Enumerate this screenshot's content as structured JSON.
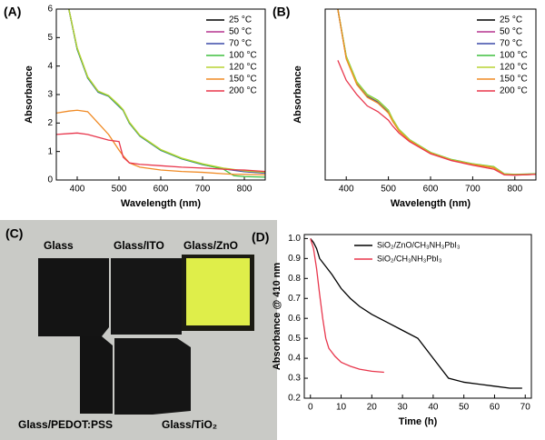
{
  "chart_data": [
    {
      "type": "line",
      "label": "(A)",
      "xlabel": "Wavelength (nm)",
      "ylabel": "Absorbance",
      "x": [
        350,
        380,
        400,
        425,
        450,
        475,
        500,
        510,
        525,
        550,
        600,
        650,
        700,
        750,
        775,
        800,
        850
      ],
      "xlim": [
        350,
        850
      ],
      "xticks": [
        400,
        500,
        600,
        700,
        800
      ],
      "ylim": [
        0,
        6
      ],
      "yticks": [
        0,
        1,
        2,
        3,
        4,
        5,
        6
      ],
      "legend": "upper right",
      "series": [
        {
          "name": "25 °C",
          "color": "#000000",
          "values": [
            null,
            6,
            4.6,
            3.6,
            3.1,
            2.95,
            2.6,
            2.45,
            2.0,
            1.55,
            1.05,
            0.75,
            0.55,
            0.4,
            0.35,
            0.3,
            0.25
          ]
        },
        {
          "name": "50 °C",
          "color": "#b5338f",
          "values": [
            null,
            6,
            4.62,
            3.62,
            3.12,
            2.96,
            2.62,
            2.46,
            2.02,
            1.56,
            1.06,
            0.76,
            0.56,
            0.41,
            0.36,
            0.31,
            0.26
          ]
        },
        {
          "name": "70 °C",
          "color": "#3b4aa8",
          "values": [
            null,
            6,
            4.58,
            3.58,
            3.08,
            2.94,
            2.58,
            2.44,
            1.99,
            1.54,
            1.04,
            0.74,
            0.54,
            0.39,
            0.34,
            0.29,
            0.24
          ]
        },
        {
          "name": "100 °C",
          "color": "#3fbf3f",
          "values": [
            null,
            6,
            4.6,
            3.6,
            3.1,
            2.95,
            2.6,
            2.45,
            2.0,
            1.55,
            1.05,
            0.75,
            0.55,
            0.38,
            0.15,
            0.12,
            0.1
          ]
        },
        {
          "name": "120 °C",
          "color": "#b8d433",
          "values": [
            null,
            6,
            4.64,
            3.63,
            3.12,
            2.97,
            2.63,
            2.47,
            2.03,
            1.57,
            1.07,
            0.77,
            0.57,
            0.42,
            0.37,
            0.32,
            0.27
          ]
        },
        {
          "name": "150 °C",
          "color": "#f08a24",
          "values": [
            2.35,
            2.42,
            2.45,
            2.4,
            2.0,
            1.6,
            1.05,
            0.85,
            0.6,
            0.45,
            0.35,
            0.3,
            0.27,
            0.22,
            0.2,
            0.2,
            0.18
          ]
        },
        {
          "name": "200 °C",
          "color": "#e8364c",
          "values": [
            1.6,
            1.63,
            1.65,
            1.6,
            1.5,
            1.4,
            1.35,
            0.8,
            0.6,
            0.55,
            0.5,
            0.45,
            0.42,
            0.38,
            0.36,
            0.35,
            0.3
          ]
        }
      ]
    },
    {
      "type": "line",
      "label": "(B)",
      "xlabel": "Wavelength (nm)",
      "ylabel": "Absorbance",
      "x": [
        350,
        380,
        400,
        425,
        450,
        475,
        500,
        510,
        525,
        550,
        600,
        650,
        700,
        750,
        775,
        800,
        850
      ],
      "xlim": [
        350,
        850
      ],
      "xticks": [
        400,
        500,
        600,
        700,
        800
      ],
      "ylim": [
        0,
        6
      ],
      "legend": "upper right",
      "series": [
        {
          "name": "25 °C",
          "color": "#000000",
          "values": [
            null,
            6,
            4.3,
            3.4,
            2.95,
            2.75,
            2.4,
            2.1,
            1.75,
            1.4,
            0.95,
            0.7,
            0.55,
            0.45,
            0.2,
            0.18,
            0.2
          ]
        },
        {
          "name": "50 °C",
          "color": "#b5338f",
          "values": [
            null,
            6,
            4.32,
            3.42,
            2.97,
            2.77,
            2.42,
            2.12,
            1.76,
            1.41,
            0.96,
            0.71,
            0.56,
            0.46,
            0.21,
            0.19,
            0.21
          ]
        },
        {
          "name": "70 °C",
          "color": "#3b4aa8",
          "values": [
            null,
            6,
            4.28,
            3.38,
            2.93,
            2.73,
            2.38,
            2.08,
            1.74,
            1.39,
            0.94,
            0.69,
            0.54,
            0.44,
            0.2,
            0.18,
            0.2
          ]
        },
        {
          "name": "100 °C",
          "color": "#3fbf3f",
          "values": [
            null,
            6,
            4.35,
            3.45,
            3.0,
            2.8,
            2.45,
            2.14,
            1.78,
            1.42,
            0.97,
            0.72,
            0.57,
            0.47,
            0.22,
            0.2,
            0.22
          ]
        },
        {
          "name": "120 °C",
          "color": "#b8d433",
          "values": [
            null,
            6,
            4.33,
            3.43,
            2.98,
            2.78,
            2.43,
            2.13,
            1.77,
            1.41,
            0.96,
            0.71,
            0.56,
            0.46,
            0.21,
            0.19,
            0.21
          ]
        },
        {
          "name": "150 °C",
          "color": "#f08a24",
          "values": [
            null,
            6,
            4.25,
            3.35,
            2.9,
            2.7,
            2.35,
            2.06,
            1.72,
            1.38,
            0.94,
            0.69,
            0.54,
            0.43,
            0.19,
            0.18,
            0.2
          ]
        },
        {
          "name": "200 °C",
          "color": "#e8364c",
          "values": [
            null,
            4.2,
            3.5,
            3.0,
            2.6,
            2.4,
            2.1,
            1.9,
            1.65,
            1.35,
            0.92,
            0.68,
            0.52,
            0.38,
            0.18,
            0.17,
            0.2
          ]
        }
      ]
    },
    {
      "type": "line",
      "label": "(D)",
      "xlabel": "Time (h)",
      "ylabel": "Absorbance @ 410 nm",
      "xlim": [
        -2,
        72
      ],
      "xticks": [
        0,
        10,
        20,
        30,
        40,
        50,
        60,
        70
      ],
      "ylim": [
        0.2,
        1.02
      ],
      "yticks": [
        0.2,
        0.3,
        0.4,
        0.5,
        0.6,
        0.7,
        0.8,
        0.9,
        {
          "value": 1,
          "label": "1.0"
        }
      ],
      "legend": "upper right",
      "series": [
        {
          "name": "SiO₂/ZnO/CH₃NH₃PbI₃",
          "color": "#000000",
          "x": [
            0,
            1,
            2,
            3,
            5,
            7,
            10,
            13,
            16,
            20,
            25,
            30,
            35,
            40,
            45,
            50,
            55,
            60,
            65,
            69
          ],
          "values": [
            1.0,
            0.98,
            0.95,
            0.9,
            0.86,
            0.82,
            0.75,
            0.7,
            0.66,
            0.62,
            0.58,
            0.54,
            0.5,
            0.4,
            0.3,
            0.28,
            0.27,
            0.26,
            0.25,
            0.25
          ]
        },
        {
          "name": "SiO₂/CH₃NH₃PbI₃",
          "color": "#e8364c",
          "x": [
            0,
            1,
            2,
            3,
            4,
            5,
            6,
            8,
            10,
            13,
            16,
            20,
            24
          ],
          "values": [
            1.0,
            0.95,
            0.85,
            0.72,
            0.6,
            0.5,
            0.45,
            0.41,
            0.38,
            0.36,
            0.345,
            0.335,
            0.33
          ]
        }
      ]
    }
  ],
  "photo": {
    "label": "(C)",
    "captions": [
      "Glass",
      "Glass/ITO",
      "Glass/ZnO",
      "Glass/PEDOT:PSS",
      "Glass/TiO₂"
    ]
  }
}
